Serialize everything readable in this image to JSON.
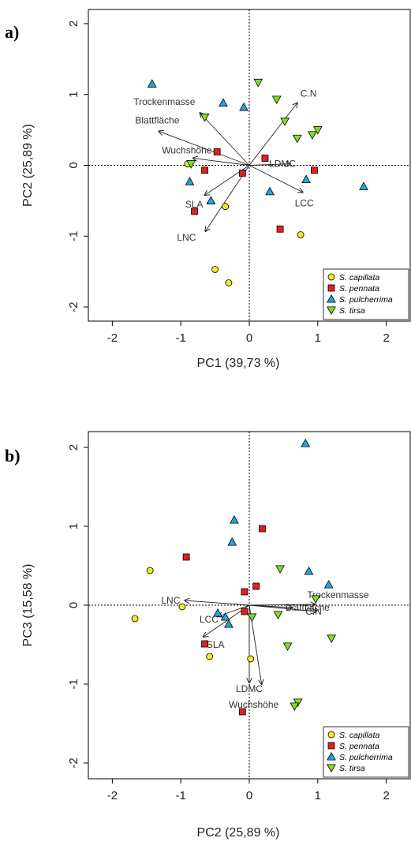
{
  "chart_data": [
    {
      "type": "scatter",
      "panel_label": "a)",
      "xlabel": "PC1 (39,73 %)",
      "ylabel": "PC2 (25,89 %)",
      "xlim": [
        -2.35,
        2.35
      ],
      "ylim": [
        -2.2,
        2.2
      ],
      "xticks": [
        "-2",
        "-1",
        "0",
        "1",
        "2"
      ],
      "yticks": [
        "-2",
        "-1",
        "0",
        "1",
        "2"
      ],
      "reference_lines": [
        0,
        0
      ],
      "series": [
        {
          "name": "S. capillata",
          "marker": "circle",
          "color": "#f0ee1e",
          "points": [
            [
              -0.9,
              0.02
            ],
            [
              -0.35,
              -0.58
            ],
            [
              -0.5,
              -1.47
            ],
            [
              -0.3,
              -1.66
            ],
            [
              0.75,
              -0.98
            ]
          ]
        },
        {
          "name": "S. pennata",
          "marker": "square",
          "color": "#e02020",
          "points": [
            [
              -0.47,
              0.19
            ],
            [
              -0.65,
              -0.07
            ],
            [
              -0.8,
              -0.65
            ],
            [
              -0.1,
              -0.11
            ],
            [
              0.23,
              0.1
            ],
            [
              0.45,
              -0.9
            ],
            [
              0.95,
              -0.07
            ]
          ]
        },
        {
          "name": "S. pulcherrima",
          "marker": "triangle-up",
          "color": "#1ea7e0",
          "points": [
            [
              -1.42,
              1.15
            ],
            [
              -0.38,
              0.88
            ],
            [
              -0.08,
              0.82
            ],
            [
              -0.87,
              -0.23
            ],
            [
              -0.56,
              -0.5
            ],
            [
              0.3,
              -0.37
            ],
            [
              0.83,
              -0.2
            ],
            [
              1.67,
              -0.3
            ]
          ]
        },
        {
          "name": "S. tirsa",
          "marker": "triangle-down",
          "color": "#7ee021",
          "points": [
            [
              0.13,
              1.17
            ],
            [
              0.4,
              0.93
            ],
            [
              0.52,
              0.62
            ],
            [
              0.7,
              0.38
            ],
            [
              0.92,
              0.43
            ],
            [
              1.0,
              0.5
            ],
            [
              -0.65,
              0.68
            ],
            [
              -0.85,
              0.02
            ]
          ]
        }
      ],
      "vectors": [
        {
          "label": "Trockenmasse",
          "x": -0.72,
          "y": 0.74
        },
        {
          "label": "Blattfläche",
          "x": -1.32,
          "y": 0.48
        },
        {
          "label": "Wuchshöhe",
          "x": -0.82,
          "y": 0.1
        },
        {
          "label": "C.N",
          "x": 0.7,
          "y": 0.88
        },
        {
          "label": "LDMC",
          "x": 0.6,
          "y": 0.02
        },
        {
          "label": "LCC",
          "x": 0.78,
          "y": -0.38
        },
        {
          "label": "SLA",
          "x": -0.65,
          "y": -0.42
        },
        {
          "label": "LNC",
          "x": -0.64,
          "y": -0.93
        }
      ],
      "legend": {
        "position": "bottom-right",
        "entries": [
          "S. capillata",
          "S. pennata",
          "S. pulcherrima",
          "S. tirsa"
        ]
      }
    },
    {
      "type": "scatter",
      "panel_label": "b)",
      "xlabel": "PC2 (25,89 %)",
      "ylabel": "PC3 (15,58 %)",
      "xlim": [
        -2.35,
        2.35
      ],
      "ylim": [
        -2.2,
        2.2
      ],
      "xticks": [
        "-2",
        "-1",
        "0",
        "1",
        "2"
      ],
      "yticks": [
        "-2",
        "-1",
        "0",
        "1",
        "2"
      ],
      "reference_lines": [
        0,
        0
      ],
      "series": [
        {
          "name": "S. capillata",
          "marker": "circle",
          "color": "#f0ee1e",
          "points": [
            [
              -1.45,
              0.44
            ],
            [
              -1.67,
              -0.17
            ],
            [
              -0.98,
              -0.02
            ],
            [
              -0.58,
              -0.65
            ],
            [
              0.02,
              -0.68
            ]
          ]
        },
        {
          "name": "S. pennata",
          "marker": "square",
          "color": "#e02020",
          "points": [
            [
              -0.92,
              0.61
            ],
            [
              0.19,
              0.97
            ],
            [
              0.1,
              0.24
            ],
            [
              -0.07,
              0.17
            ],
            [
              -0.07,
              -0.08
            ],
            [
              -0.65,
              -0.49
            ],
            [
              -0.1,
              -1.35
            ]
          ]
        },
        {
          "name": "S. pulcherrima",
          "marker": "triangle-up",
          "color": "#1ea7e0",
          "points": [
            [
              0.82,
              2.05
            ],
            [
              -0.22,
              1.08
            ],
            [
              -0.25,
              0.8
            ],
            [
              0.87,
              0.43
            ],
            [
              1.16,
              0.26
            ],
            [
              -0.46,
              -0.1
            ],
            [
              -0.35,
              -0.15
            ],
            [
              -0.3,
              -0.24
            ]
          ]
        },
        {
          "name": "S. tirsa",
          "marker": "triangle-down",
          "color": "#7ee021",
          "points": [
            [
              0.45,
              0.46
            ],
            [
              0.97,
              0.08
            ],
            [
              1.2,
              -0.42
            ],
            [
              0.42,
              -0.12
            ],
            [
              0.04,
              -0.15
            ],
            [
              0.56,
              -0.52
            ],
            [
              0.71,
              -1.23
            ],
            [
              0.66,
              -1.28
            ]
          ]
        }
      ],
      "vectors": [
        {
          "label": "LNC",
          "x": -0.94,
          "y": 0.06
        },
        {
          "label": "LCC",
          "x": -0.45,
          "y": -0.14
        },
        {
          "label": "SLA",
          "x": -0.67,
          "y": -0.4
        },
        {
          "label": "Trockenmasse",
          "x": 0.96,
          "y": 0.01
        },
        {
          "label": "Blattfläche",
          "x": 0.62,
          "y": -0.03
        },
        {
          "label": "C.N",
          "x": 0.98,
          "y": -0.08
        },
        {
          "label": "LDMC",
          "x": 0.0,
          "y": -0.98
        },
        {
          "label": "Wuchshöhe",
          "x": 0.18,
          "y": -1.0
        }
      ],
      "legend": {
        "position": "bottom-right",
        "entries": [
          "S. capillata",
          "S. pennata",
          "S. pulcherrima",
          "S. tirsa"
        ]
      }
    }
  ]
}
